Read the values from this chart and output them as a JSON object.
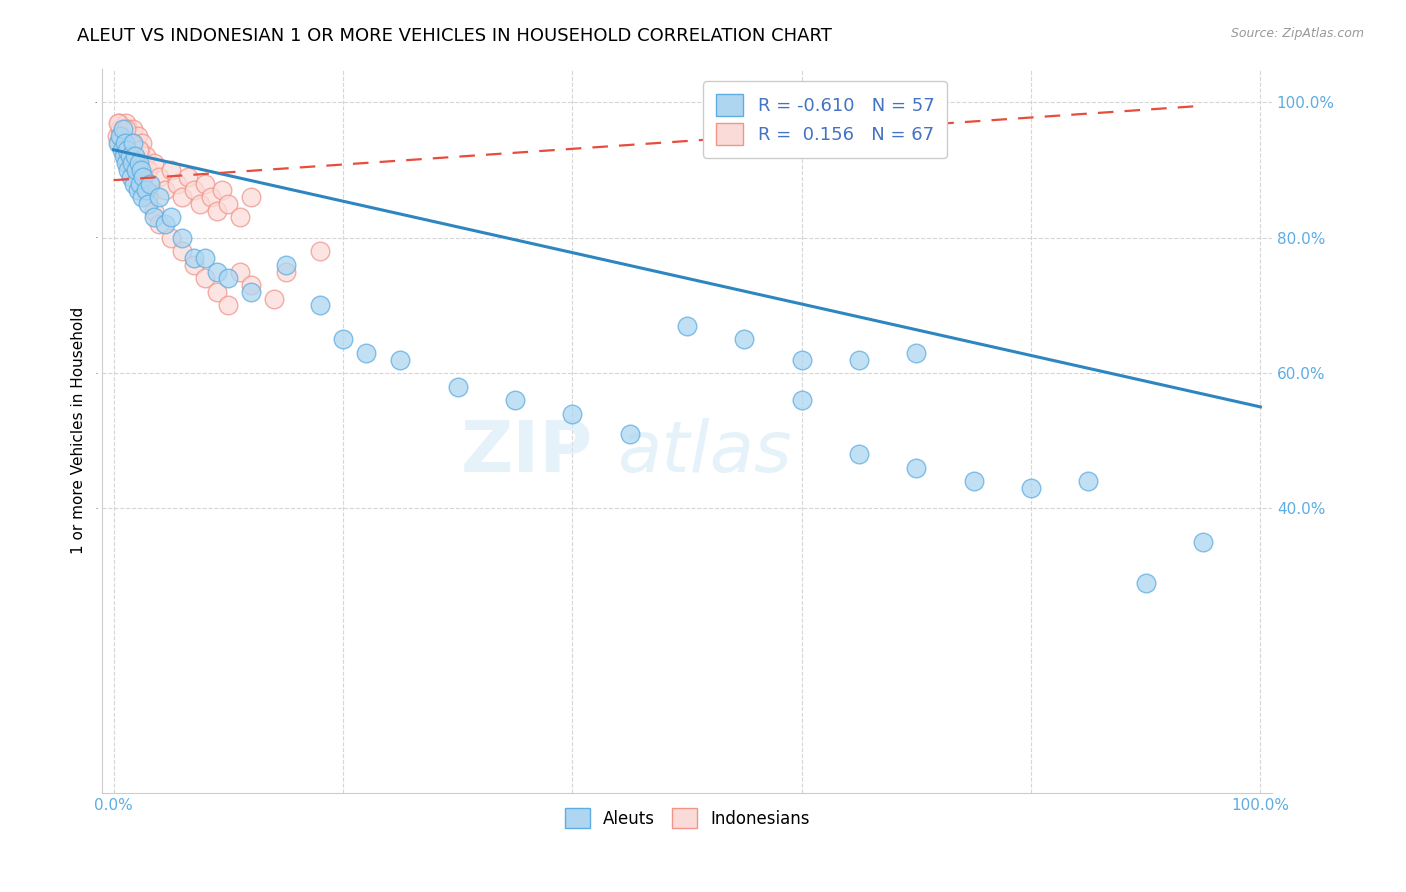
{
  "title": "ALEUT VS INDONESIAN 1 OR MORE VEHICLES IN HOUSEHOLD CORRELATION CHART",
  "source": "Source: ZipAtlas.com",
  "ylabel": "1 or more Vehicles in Household",
  "legend_label1": "Aleuts",
  "legend_label2": "Indonesians",
  "R_aleut": -0.61,
  "N_aleut": 57,
  "R_indonesian": 0.156,
  "N_indonesian": 67,
  "watermark_zip": "ZIP",
  "watermark_atlas": "atlas",
  "aleut_color_face": "#AED6F1",
  "aleut_color_edge": "#5DADE2",
  "indo_color_face": "#FADBD8",
  "indo_color_edge": "#F1948A",
  "aleut_line_color": "#2E86C1",
  "indo_line_color": "#E74C3C",
  "axis_label_color": "#5DADE2",
  "aleut_x": [
    0.4,
    0.6,
    0.7,
    0.8,
    0.9,
    1.0,
    1.1,
    1.2,
    1.3,
    1.4,
    1.5,
    1.6,
    1.7,
    1.8,
    1.9,
    2.0,
    2.1,
    2.2,
    2.3,
    2.4,
    2.5,
    2.6,
    2.8,
    3.0,
    3.2,
    3.5,
    4.0,
    4.5,
    5.0,
    6.0,
    7.0,
    8.0,
    9.0,
    10.0,
    12.0,
    15.0,
    18.0,
    20.0,
    22.0,
    25.0,
    30.0,
    35.0,
    40.0,
    45.0,
    50.0,
    55.0,
    60.0,
    65.0,
    70.0,
    75.0,
    80.0,
    85.0,
    90.0,
    95.0,
    60.0,
    65.0,
    70.0
  ],
  "aleut_y": [
    94.0,
    95.0,
    93.0,
    96.0,
    92.0,
    94.0,
    91.0,
    93.0,
    90.0,
    92.0,
    89.0,
    91.0,
    94.0,
    88.0,
    92.0,
    90.0,
    87.0,
    91.0,
    88.0,
    90.0,
    86.0,
    89.0,
    87.0,
    85.0,
    88.0,
    83.0,
    86.0,
    82.0,
    83.0,
    80.0,
    77.0,
    77.0,
    75.0,
    74.0,
    72.0,
    76.0,
    70.0,
    65.0,
    63.0,
    62.0,
    58.0,
    56.0,
    54.0,
    51.0,
    67.0,
    65.0,
    56.0,
    48.0,
    46.0,
    44.0,
    43.0,
    44.0,
    29.0,
    35.0,
    62.0,
    62.0,
    63.0
  ],
  "indo_x": [
    0.3,
    0.5,
    0.6,
    0.7,
    0.8,
    0.9,
    1.0,
    1.1,
    1.2,
    1.3,
    1.4,
    1.5,
    1.6,
    1.7,
    1.8,
    1.9,
    2.0,
    2.1,
    2.2,
    2.3,
    2.4,
    2.5,
    2.6,
    2.8,
    3.0,
    3.2,
    3.5,
    4.0,
    4.5,
    5.0,
    5.5,
    6.0,
    6.5,
    7.0,
    7.5,
    8.0,
    8.5,
    9.0,
    9.5,
    10.0,
    11.0,
    12.0,
    0.4,
    0.5,
    0.7,
    0.9,
    1.1,
    1.3,
    1.5,
    1.7,
    2.0,
    2.2,
    2.5,
    3.0,
    3.5,
    4.0,
    5.0,
    6.0,
    7.0,
    8.0,
    9.0,
    10.0,
    11.0,
    12.0,
    14.0,
    15.0,
    18.0
  ],
  "indo_y": [
    95.0,
    97.0,
    96.0,
    94.0,
    96.0,
    95.0,
    93.0,
    97.0,
    94.0,
    96.0,
    92.0,
    95.0,
    93.0,
    96.0,
    91.0,
    94.0,
    92.0,
    95.0,
    90.0,
    93.0,
    91.0,
    94.0,
    89.0,
    92.0,
    90.0,
    88.0,
    91.0,
    89.0,
    87.0,
    90.0,
    88.0,
    86.0,
    89.0,
    87.0,
    85.0,
    88.0,
    86.0,
    84.0,
    87.0,
    85.0,
    83.0,
    86.0,
    97.0,
    94.0,
    95.0,
    93.0,
    96.0,
    91.0,
    94.0,
    92.0,
    90.0,
    93.0,
    88.0,
    86.0,
    84.0,
    82.0,
    80.0,
    78.0,
    76.0,
    74.0,
    72.0,
    70.0,
    75.0,
    73.0,
    71.0,
    75.0,
    78.0
  ],
  "aleut_line_x0": 0.0,
  "aleut_line_x1": 100.0,
  "aleut_line_y0": 93.0,
  "aleut_line_y1": 55.0,
  "indo_line_x0": 0.0,
  "indo_line_x1": 95.0,
  "indo_line_y0": 88.5,
  "indo_line_y1": 99.5,
  "xlim_min": 0.0,
  "xlim_max": 100.0,
  "ylim_min": 0.0,
  "ylim_max": 105.0,
  "yticks": [
    40.0,
    60.0,
    80.0,
    100.0
  ],
  "ytick_labels": [
    "40.0%",
    "60.0%",
    "80.0%",
    "100.0%"
  ],
  "xtick_labels_show": [
    "0.0%",
    "100.0%"
  ],
  "marker_size": 180,
  "title_fontsize": 13,
  "axis_fontsize": 11,
  "legend_fontsize": 13
}
